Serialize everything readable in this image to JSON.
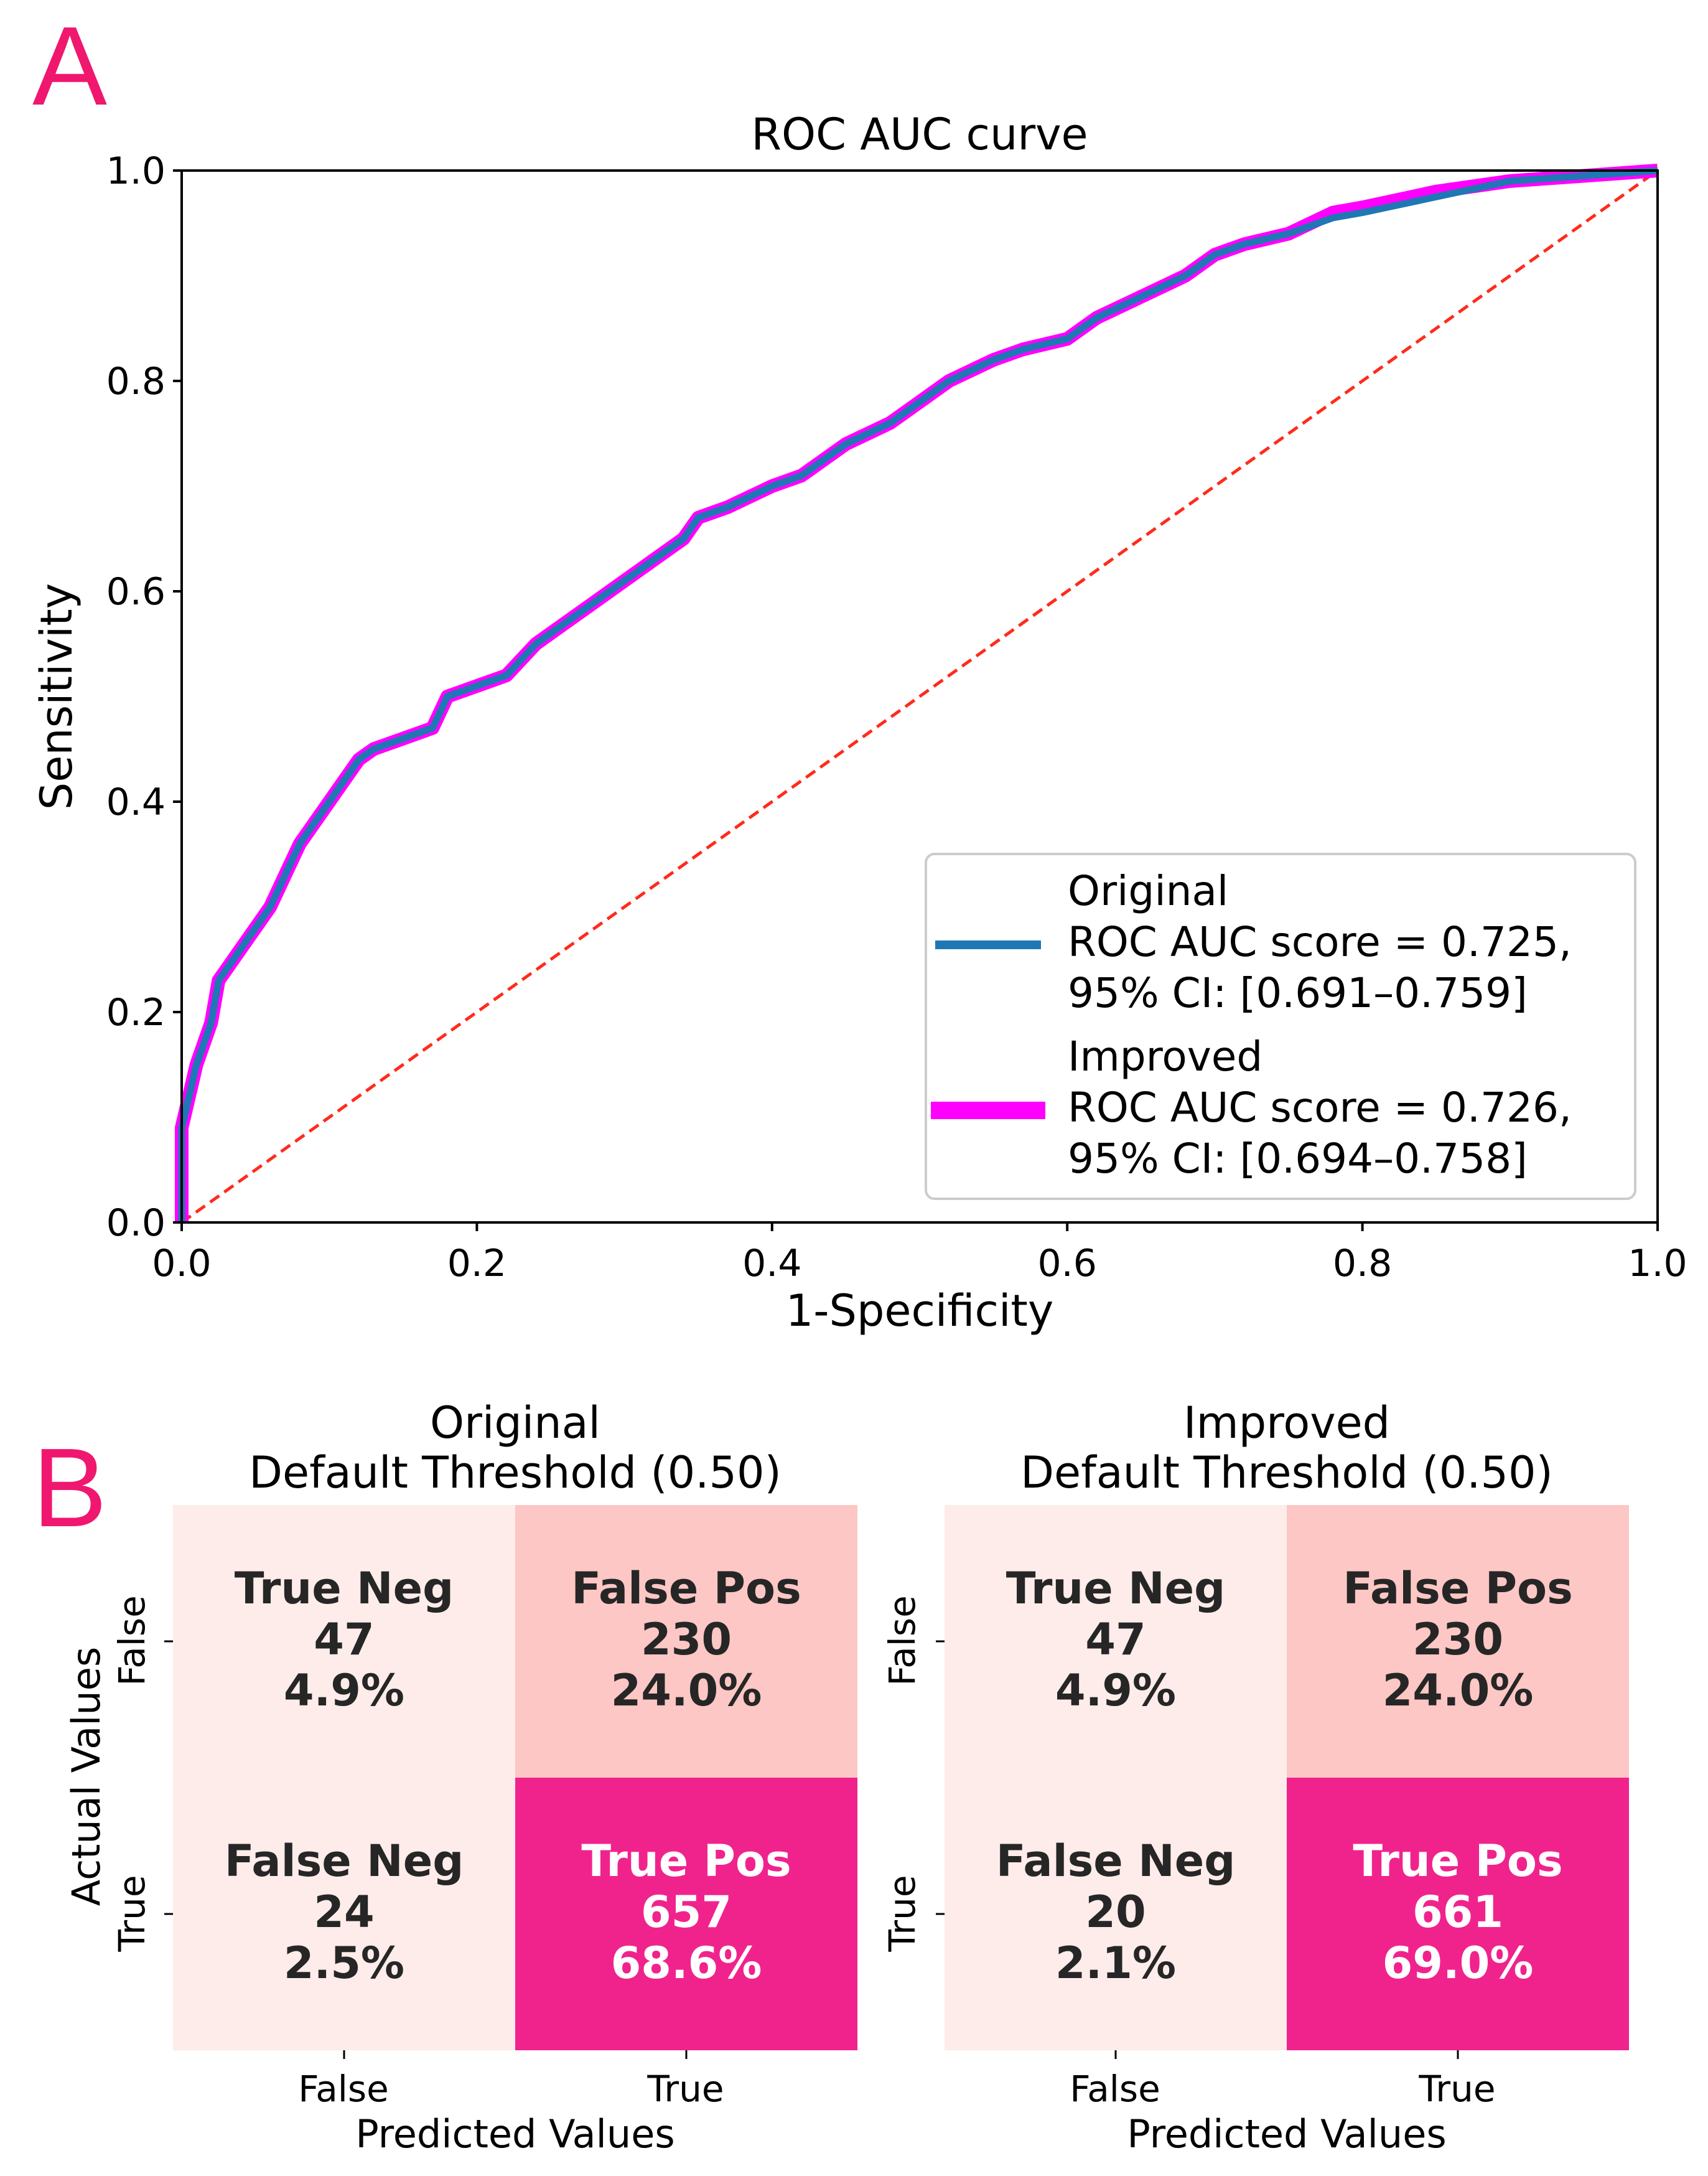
{
  "panel_labels": {
    "a": "A",
    "b": "B"
  },
  "colors": {
    "panel_letter": "#f0176e",
    "original_line": "#1f77b4",
    "improved_line": "#ff00ff",
    "chance_line": "#ff2b1c",
    "cm_low": "#fdecea",
    "cm_mid": "#fcc7c4",
    "cm_high": "#f0238d"
  },
  "chart_data": [
    {
      "type": "line",
      "title": "ROC AUC curve",
      "xlabel": "1-Specificity",
      "ylabel": "Sensitivity",
      "xlim": [
        0,
        1
      ],
      "ylim": [
        0,
        1
      ],
      "xticks": [
        "0.0",
        "0.2",
        "0.4",
        "0.6",
        "0.8",
        "1.0"
      ],
      "yticks": [
        "0.0",
        "0.2",
        "0.4",
        "0.6",
        "0.8",
        "1.0"
      ],
      "legend_position": "lower-right",
      "series": [
        {
          "name": "Improved",
          "legend_lines": [
            "Improved",
            "ROC AUC score = 0.726,",
            "95% CI: [0.694–0.758]"
          ],
          "color": "#ff00ff",
          "x": [
            0,
            0,
            0.005,
            0.01,
            0.02,
            0.025,
            0.03,
            0.04,
            0.05,
            0.06,
            0.07,
            0.08,
            0.09,
            0.1,
            0.11,
            0.12,
            0.13,
            0.15,
            0.17,
            0.18,
            0.2,
            0.22,
            0.24,
            0.26,
            0.28,
            0.3,
            0.32,
            0.34,
            0.35,
            0.37,
            0.4,
            0.42,
            0.45,
            0.48,
            0.5,
            0.52,
            0.55,
            0.57,
            0.6,
            0.62,
            0.65,
            0.68,
            0.7,
            0.72,
            0.75,
            0.78,
            0.8,
            0.85,
            0.9,
            0.95,
            1.0
          ],
          "y": [
            0,
            0.09,
            0.12,
            0.15,
            0.19,
            0.23,
            0.24,
            0.26,
            0.28,
            0.3,
            0.33,
            0.36,
            0.38,
            0.4,
            0.42,
            0.44,
            0.45,
            0.46,
            0.47,
            0.5,
            0.51,
            0.52,
            0.55,
            0.57,
            0.59,
            0.61,
            0.63,
            0.65,
            0.67,
            0.68,
            0.7,
            0.71,
            0.74,
            0.76,
            0.78,
            0.8,
            0.82,
            0.83,
            0.84,
            0.86,
            0.88,
            0.9,
            0.92,
            0.93,
            0.94,
            0.96,
            0.965,
            0.98,
            0.99,
            0.995,
            1.0
          ]
        },
        {
          "name": "Original",
          "legend_lines": [
            "Original",
            "ROC AUC score = 0.725,",
            "95% CI: [0.691–0.759]"
          ],
          "color": "#1f77b4",
          "x": [
            0,
            0,
            0.005,
            0.01,
            0.02,
            0.025,
            0.03,
            0.04,
            0.05,
            0.06,
            0.07,
            0.08,
            0.09,
            0.1,
            0.11,
            0.12,
            0.13,
            0.15,
            0.17,
            0.18,
            0.2,
            0.22,
            0.24,
            0.26,
            0.28,
            0.3,
            0.32,
            0.34,
            0.35,
            0.37,
            0.4,
            0.42,
            0.45,
            0.48,
            0.5,
            0.52,
            0.55,
            0.57,
            0.6,
            0.62,
            0.65,
            0.68,
            0.7,
            0.72,
            0.75,
            0.78,
            0.8,
            0.85,
            0.9,
            0.95,
            1.0
          ],
          "y": [
            0,
            0.09,
            0.12,
            0.15,
            0.19,
            0.23,
            0.24,
            0.26,
            0.28,
            0.3,
            0.33,
            0.36,
            0.38,
            0.4,
            0.42,
            0.44,
            0.45,
            0.46,
            0.47,
            0.5,
            0.51,
            0.52,
            0.55,
            0.57,
            0.59,
            0.61,
            0.63,
            0.65,
            0.67,
            0.68,
            0.7,
            0.71,
            0.74,
            0.76,
            0.78,
            0.8,
            0.82,
            0.83,
            0.84,
            0.86,
            0.88,
            0.9,
            0.92,
            0.93,
            0.94,
            0.955,
            0.96,
            0.975,
            0.99,
            0.995,
            1.0
          ]
        },
        {
          "name": "Chance",
          "color": "#ff2b1c",
          "dashed": true,
          "x": [
            0,
            1
          ],
          "y": [
            0,
            1
          ]
        }
      ]
    },
    {
      "type": "heatmap",
      "title_lines": [
        "Original",
        "Default Threshold (0.50)"
      ],
      "xlabel": "Predicted Values",
      "ylabel": "Actual Values",
      "x_tick_labels": [
        "False",
        "True"
      ],
      "y_tick_labels": [
        "False",
        "True"
      ],
      "cells": [
        [
          {
            "label": "True Neg",
            "count": "47",
            "percent": "4.9%",
            "value": 47
          },
          {
            "label": "False Pos",
            "count": "230",
            "percent": "24.0%",
            "value": 230
          }
        ],
        [
          {
            "label": "False Neg",
            "count": "24",
            "percent": "2.5%",
            "value": 24
          },
          {
            "label": "True Pos",
            "count": "657",
            "percent": "68.6%",
            "value": 657
          }
        ]
      ]
    },
    {
      "type": "heatmap",
      "title_lines": [
        "Improved",
        "Default Threshold (0.50)"
      ],
      "xlabel": "Predicted Values",
      "ylabel": "",
      "x_tick_labels": [
        "False",
        "True"
      ],
      "y_tick_labels": [
        "False",
        "True"
      ],
      "cells": [
        [
          {
            "label": "True Neg",
            "count": "47",
            "percent": "4.9%",
            "value": 47
          },
          {
            "label": "False Pos",
            "count": "230",
            "percent": "24.0%",
            "value": 230
          }
        ],
        [
          {
            "label": "False Neg",
            "count": "20",
            "percent": "2.1%",
            "value": 20
          },
          {
            "label": "True Pos",
            "count": "661",
            "percent": "69.0%",
            "value": 661
          }
        ]
      ]
    }
  ]
}
